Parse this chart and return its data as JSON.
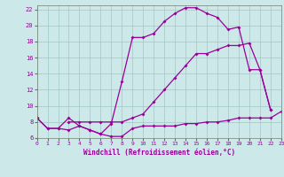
{
  "xlabel": "Windchill (Refroidissement éolien,°C)",
  "bg_color": "#cce8e8",
  "grid_color": "#a0c8c8",
  "line_color": "#990099",
  "xlim": [
    0,
    23
  ],
  "ylim": [
    6,
    22.5
  ],
  "xticks": [
    0,
    1,
    2,
    3,
    4,
    5,
    6,
    7,
    8,
    9,
    10,
    11,
    12,
    13,
    14,
    15,
    16,
    17,
    18,
    19,
    20,
    21,
    22,
    23
  ],
  "yticks": [
    6,
    8,
    10,
    12,
    14,
    16,
    18,
    20,
    22
  ],
  "curve1_x": [
    0,
    1,
    2,
    3,
    4,
    5,
    6,
    7,
    8,
    9,
    10,
    11,
    12,
    13,
    14,
    15,
    16,
    17,
    18,
    19,
    20,
    21,
    22,
    23
  ],
  "curve1_y": [
    8.5,
    7.2,
    7.2,
    8.5,
    7.5,
    7.0,
    6.5,
    6.2,
    6.2,
    7.2,
    7.5,
    7.5,
    7.5,
    7.5,
    7.8,
    7.8,
    8.0,
    8.0,
    8.2,
    8.5,
    8.5,
    8.5,
    8.5,
    9.3
  ],
  "curve2_x": [
    0,
    1,
    2,
    3,
    4,
    5,
    6,
    7,
    8,
    9,
    10,
    11,
    12,
    13,
    14,
    15,
    16,
    17,
    18,
    19,
    20,
    21,
    22
  ],
  "curve2_y": [
    8.5,
    7.2,
    7.2,
    7.0,
    7.5,
    7.0,
    6.5,
    7.8,
    13.0,
    18.5,
    18.5,
    19.0,
    20.5,
    21.5,
    22.2,
    22.2,
    21.5,
    21.0,
    19.5,
    19.8,
    14.5,
    14.5,
    9.5
  ],
  "curve3_x": [
    3,
    4,
    5,
    6,
    7,
    8,
    9,
    10,
    11,
    12,
    13,
    14,
    15,
    16,
    17,
    18,
    19,
    20,
    21,
    22
  ],
  "curve3_y": [
    8.0,
    8.0,
    8.0,
    8.0,
    8.0,
    8.0,
    8.5,
    9.0,
    10.5,
    12.0,
    13.5,
    15.0,
    16.5,
    16.5,
    17.0,
    17.5,
    17.5,
    17.8,
    14.5,
    9.5
  ]
}
